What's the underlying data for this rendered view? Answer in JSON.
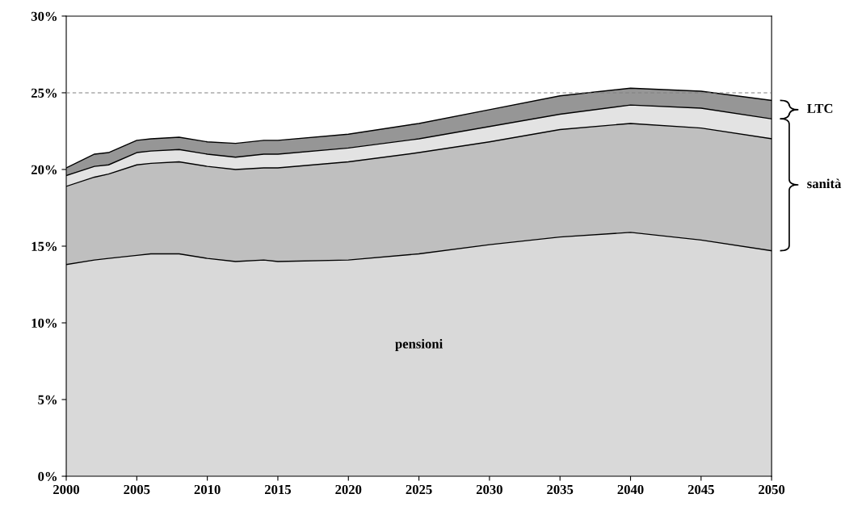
{
  "chart_data": {
    "type": "area",
    "stacked": true,
    "x": [
      2000,
      2002,
      2003,
      2005,
      2006,
      2008,
      2010,
      2012,
      2014,
      2015,
      2020,
      2025,
      2030,
      2035,
      2040,
      2045,
      2050
    ],
    "series": [
      {
        "name": "pensioni",
        "color": "#d9d9d9",
        "values": [
          13.8,
          14.1,
          14.2,
          14.4,
          14.5,
          14.5,
          14.2,
          14.0,
          14.1,
          14.0,
          14.1,
          14.5,
          15.1,
          15.6,
          15.9,
          15.4,
          14.7
        ]
      },
      {
        "name": "sanità",
        "color": "#bfbfbf",
        "values": [
          5.1,
          5.4,
          5.5,
          5.9,
          5.9,
          6.0,
          6.0,
          6.0,
          6.0,
          6.1,
          6.4,
          6.6,
          6.7,
          7.0,
          7.1,
          7.3,
          7.3
        ]
      },
      {
        "color": "#e3e3e3",
        "values": [
          0.7,
          0.7,
          0.6,
          0.8,
          0.8,
          0.8,
          0.8,
          0.8,
          0.9,
          0.9,
          0.9,
          0.9,
          1.0,
          1.0,
          1.2,
          1.3,
          1.3
        ]
      },
      {
        "name": "LTC",
        "color": "#969696",
        "values": [
          0.5,
          0.8,
          0.8,
          0.8,
          0.8,
          0.8,
          0.8,
          0.9,
          0.9,
          0.9,
          0.9,
          1.0,
          1.1,
          1.2,
          1.1,
          1.1,
          1.2
        ]
      }
    ],
    "xlim": [
      2000,
      2050
    ],
    "ylim": [
      0,
      30
    ],
    "xticks": [
      2000,
      2005,
      2010,
      2015,
      2020,
      2025,
      2030,
      2035,
      2040,
      2045,
      2050
    ],
    "yticks": [
      {
        "value": 0,
        "label": "0%"
      },
      {
        "value": 5,
        "label": "5%"
      },
      {
        "value": 10,
        "label": "10%"
      },
      {
        "value": 15,
        "label": "15%"
      },
      {
        "value": 20,
        "label": "20%"
      },
      {
        "value": 25,
        "label": "25%"
      },
      {
        "value": 30,
        "label": "30%"
      }
    ],
    "ref_lines": [
      {
        "axis": "y",
        "value": 25,
        "color": "#808080",
        "line_style": "dashed"
      }
    ],
    "grid": false
  }
}
